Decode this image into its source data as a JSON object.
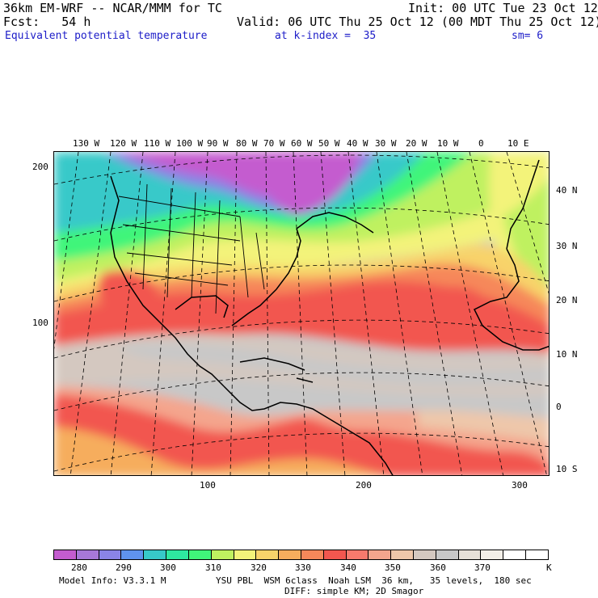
{
  "header": {
    "model_line": "36km EM-WRF -- NCAR/MMM for TC",
    "init_line": "Init: 00 UTC Tue 23 Oct 12",
    "fcst_line": "Fcst:   54 h",
    "valid_line": "Valid: 06 UTC Thu 25 Oct 12 (00 MDT Thu 25 Oct 12)",
    "field_label": "Equivalent potential temperature",
    "kindex_label": "at k-index =  35",
    "sm_label": "sm= 6"
  },
  "map": {
    "left_axis_ticks": [
      "200",
      "100"
    ],
    "bottom_axis_ticks": [
      "100",
      "200",
      "300"
    ],
    "longitude_labels": [
      "130 W",
      "120 W",
      "110 W",
      "100 W",
      "90 W",
      "80 W",
      "70 W",
      "60 W",
      "50 W",
      "40 W",
      "30 W",
      "20 W",
      "10 W",
      "0",
      "10 E"
    ],
    "latitude_labels": [
      "40 N",
      "30 N",
      "20 N",
      "10 N",
      "0",
      "10 S"
    ]
  },
  "colorbar": {
    "colors": [
      "#c45ccf",
      "#a778d8",
      "#8a84e6",
      "#5f93ee",
      "#37c9c9",
      "#2ee8a0",
      "#40f57a",
      "#bff160",
      "#f3f37a",
      "#f8d36a",
      "#f6ad5d",
      "#f6885a",
      "#f2574f",
      "#f77a6d",
      "#f4a58d",
      "#eec7aa",
      "#d4c8c0",
      "#c8c8c8",
      "#e6e0d8",
      "#f3efe8",
      "#ffffff",
      "#ffffff"
    ],
    "labels": [
      "280",
      "290",
      "300",
      "310",
      "320",
      "330",
      "340",
      "350",
      "360",
      "370"
    ],
    "unit": "K"
  },
  "footer": {
    "model_info": "Model Info: V3.3.1 M",
    "physics": "YSU PBL  WSM 6class  Noah LSM  36 km,   35 levels,  180 sec",
    "diffusion": "DIFF: simple KM; 2D Smagor"
  }
}
